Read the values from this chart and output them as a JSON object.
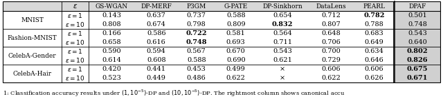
{
  "columns": [
    "ε",
    "GS-WGAN",
    "DP-MERF",
    "P3GM",
    "G-PATE",
    "DP-Sinkhorn",
    "DataLens",
    "PEARL",
    "DPAF"
  ],
  "rows": [
    {
      "dataset": "MNIST",
      "eps1": {
        "values": [
          "0.143",
          "0.637",
          "0.737",
          "0.588",
          "0.654",
          "0.712",
          "0.782",
          "0.501"
        ],
        "bold": [
          false,
          false,
          false,
          false,
          false,
          false,
          true,
          false
        ]
      },
      "eps10": {
        "values": [
          "0.808",
          "0.674",
          "0.798",
          "0.809",
          "0.832",
          "0.807",
          "0.788",
          "0.748"
        ],
        "bold": [
          false,
          false,
          false,
          false,
          true,
          false,
          false,
          false
        ]
      }
    },
    {
      "dataset": "Fashion-MNIST",
      "eps1": {
        "values": [
          "0.166",
          "0.586",
          "0.722",
          "0.581",
          "0.564",
          "0.648",
          "0.683",
          "0.543"
        ],
        "bold": [
          false,
          false,
          true,
          false,
          false,
          false,
          false,
          false
        ]
      },
      "eps10": {
        "values": [
          "0.658",
          "0.616",
          "0.748",
          "0.693",
          "0.711",
          "0.706",
          "0.649",
          "0.640"
        ],
        "bold": [
          false,
          false,
          true,
          false,
          false,
          false,
          false,
          false
        ]
      }
    },
    {
      "dataset": "CelebA-Gender",
      "eps1": {
        "values": [
          "0.590",
          "0.594",
          "0.567",
          "0.670",
          "0.543",
          "0.700",
          "0.634",
          "0.802"
        ],
        "bold": [
          false,
          false,
          false,
          false,
          false,
          false,
          false,
          true
        ]
      },
      "eps10": {
        "values": [
          "0.614",
          "0.608",
          "0.588",
          "0.690",
          "0.621",
          "0.729",
          "0.646",
          "0.826"
        ],
        "bold": [
          false,
          false,
          false,
          false,
          false,
          false,
          false,
          true
        ]
      }
    },
    {
      "dataset": "CelebA-Hair",
      "eps1": {
        "values": [
          "0.420",
          "0.441",
          "0.453",
          "0.499",
          "×",
          "0.606",
          "0.606",
          "0.675"
        ],
        "bold": [
          false,
          false,
          false,
          false,
          false,
          false,
          false,
          true
        ]
      },
      "eps10": {
        "values": [
          "0.523",
          "0.449",
          "0.486",
          "0.622",
          "×",
          "0.622",
          "0.626",
          "0.671"
        ],
        "bold": [
          false,
          false,
          false,
          false,
          false,
          false,
          false,
          true
        ]
      }
    }
  ],
  "caption": "1: Classification accuracy results under $(1,10^{-5})$-DP and $(10,10^{-5})$-DP. The rightmost column shows canonical accu",
  "header_color": "#d8d8d8",
  "dpaf_color": "#d0d0d0",
  "line_color": "#000000",
  "font_size": 7.0,
  "caption_font_size": 6.0
}
